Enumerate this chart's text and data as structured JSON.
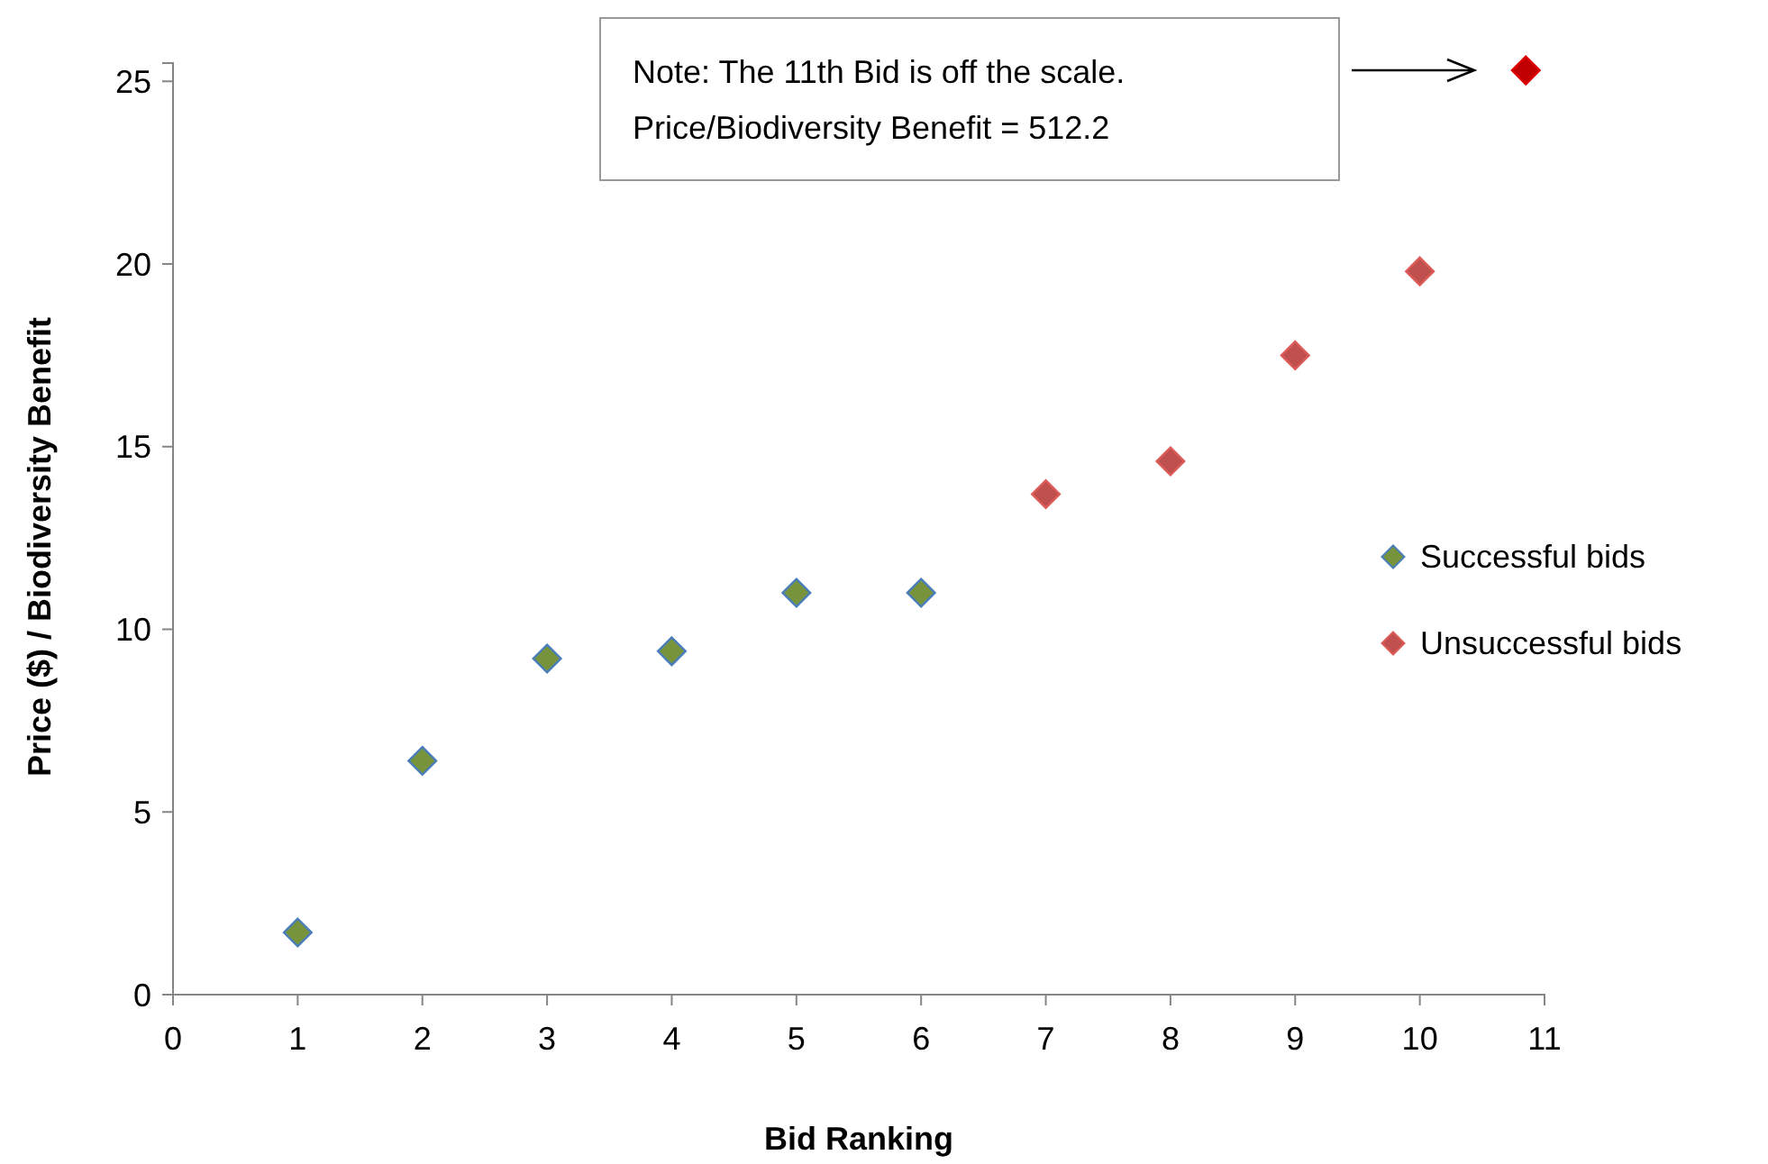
{
  "chart_data": {
    "type": "scatter",
    "xlabel": "Bid Ranking",
    "ylabel": "Price ($) / Biodiversity  Benefit",
    "xlim": [
      0,
      11
    ],
    "xticks": [
      0,
      1,
      2,
      3,
      4,
      5,
      6,
      7,
      8,
      9,
      10,
      11
    ],
    "ylim": [
      0,
      25.5
    ],
    "yticks": [
      0,
      5,
      10,
      15,
      20,
      25
    ],
    "grid": false,
    "legend": "right",
    "marker": "diamond",
    "series": [
      {
        "name": "Successful bids",
        "color": "#77933c",
        "x": [
          1,
          2,
          3,
          4,
          5,
          6
        ],
        "values": [
          1.7,
          6.4,
          9.2,
          9.4,
          11.0,
          11.0
        ]
      },
      {
        "name": "Unsuccessful bids",
        "color": "#c0504d",
        "x": [
          7,
          8,
          9,
          10
        ],
        "values": [
          13.7,
          14.6,
          17.5,
          19.8
        ]
      },
      {
        "color": "#c00000",
        "x": [
          10.85
        ],
        "values": [
          25.3
        ]
      }
    ],
    "annotations": [
      "Note: The 11th Bid is off the scale.\nPrice/Biodiversity Benefit = 512.2"
    ]
  }
}
